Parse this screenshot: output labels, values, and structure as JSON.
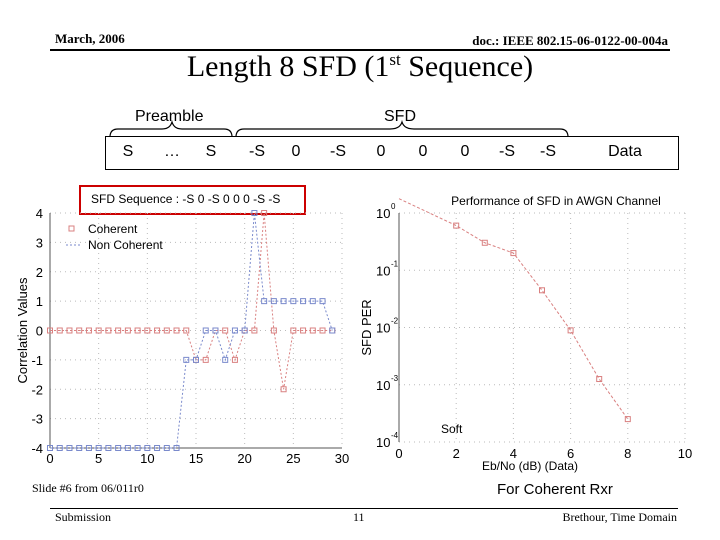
{
  "header": {
    "date": "March, 2006",
    "doc": "doc.: IEEE 802.15-06-0122-00-004a"
  },
  "title": {
    "main": "Length 8 SFD (1",
    "sup": "st",
    "rest": " Sequence)"
  },
  "sequence": {
    "preamble_label": "Preamble",
    "sfd_label": "SFD",
    "symbols": [
      "S",
      "…",
      "S",
      "-S",
      "0",
      "-S",
      "0",
      "0",
      "0",
      "-S",
      "-S",
      "Data"
    ]
  },
  "chart_data": [
    {
      "type": "line",
      "title": "SFD Sequence : -S 0 -S 0 0 0 -S -S",
      "ylabel": "Correlation Values",
      "xlabel": "",
      "xlim": [
        0,
        30
      ],
      "ylim": [
        -4,
        4
      ],
      "xticks": [
        "0",
        "5",
        "10",
        "15",
        "20",
        "25",
        "30"
      ],
      "yticks": [
        "4",
        "3",
        "2",
        "1",
        "0",
        "-1",
        "-2",
        "-3",
        "-4"
      ],
      "legend": "top-left",
      "series": [
        {
          "name": "Coherent",
          "color": "#d98080",
          "x": [
            0,
            1,
            2,
            3,
            4,
            5,
            6,
            7,
            8,
            9,
            10,
            11,
            12,
            13,
            14,
            15,
            16,
            17,
            18,
            19,
            20,
            21,
            22,
            23,
            24,
            25,
            26,
            27,
            28,
            29
          ],
          "values": [
            0,
            0,
            0,
            0,
            0,
            0,
            0,
            0,
            0,
            0,
            0,
            0,
            0,
            0,
            0,
            -1,
            -1,
            0,
            0,
            -1,
            0,
            0,
            4,
            0,
            -2,
            0,
            0,
            0,
            0,
            0
          ]
        },
        {
          "name": "Non Coherent",
          "color": "#7a8acc",
          "x": [
            0,
            1,
            2,
            3,
            4,
            5,
            6,
            7,
            8,
            9,
            10,
            11,
            12,
            13,
            14,
            15,
            16,
            17,
            18,
            19,
            20,
            21,
            22,
            23,
            24,
            25,
            26,
            27,
            28,
            29
          ],
          "values": [
            -4,
            -4,
            -4,
            -4,
            -4,
            -4,
            -4,
            -4,
            -4,
            -4,
            -4,
            -4,
            -4,
            -4,
            -1,
            -1,
            0,
            0,
            -1,
            0,
            0,
            4,
            1,
            1,
            1,
            1,
            1,
            1,
            1,
            0
          ]
        }
      ]
    },
    {
      "type": "line",
      "title": "Performance of SFD in AWGN Channel",
      "ylabel": "SFD PER",
      "xlabel": "Eb/No (dB) (Data)",
      "xlim": [
        0,
        10
      ],
      "ylim_log10": [
        -4,
        0
      ],
      "xticks": [
        "0",
        "2",
        "4",
        "6",
        "8",
        "10"
      ],
      "yticks_base": "10",
      "yticks_exp": [
        "0",
        "-1",
        "-2",
        "-3",
        "-4"
      ],
      "annotation": "Soft",
      "series": [
        {
          "color": "#d98080",
          "x": [
            2,
            3,
            4,
            5,
            6,
            7,
            8
          ],
          "log10_values": [
            -0.22,
            -0.52,
            -0.7,
            -1.35,
            -2.05,
            -2.9,
            -3.6
          ]
        }
      ]
    }
  ],
  "notes": {
    "left": "Slide #6 from 06/011r0",
    "right": "For Coherent Rxr"
  },
  "footer": {
    "left": "Submission",
    "center": "11",
    "right": "Brethour, Time Domain"
  }
}
